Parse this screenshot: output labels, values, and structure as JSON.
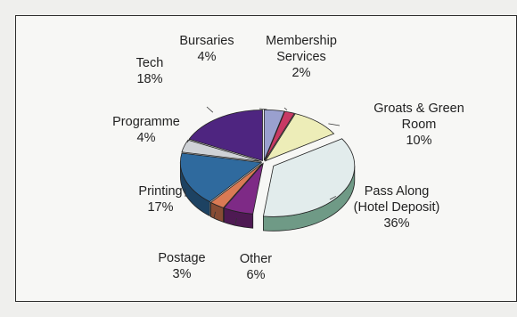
{
  "chart_data": {
    "type": "pie",
    "style": "3d-exploded",
    "title": "",
    "slices": [
      {
        "label": [
          "Bursaries"
        ],
        "value": 4,
        "pct": "4%",
        "color": "#9aa0cf"
      },
      {
        "label": [
          "Membership",
          "Services"
        ],
        "value": 2,
        "pct": "2%",
        "color": "#c83a64"
      },
      {
        "label": [
          "Groats & Green",
          "Room"
        ],
        "value": 10,
        "pct": "10%",
        "color": "#ededb8"
      },
      {
        "label": [
          "Pass Along",
          "(Hotel Deposit)"
        ],
        "value": 36,
        "pct": "36%",
        "color": "#e2ecec"
      },
      {
        "label": [
          "Other"
        ],
        "value": 6,
        "pct": "6%",
        "color": "#7e2a86"
      },
      {
        "label": [
          "Postage"
        ],
        "value": 3,
        "pct": "3%",
        "color": "#d97a54"
      },
      {
        "label": [
          "Printing"
        ],
        "value": 17,
        "pct": "17%",
        "color": "#2f6a9e"
      },
      {
        "label": [
          "Programme"
        ],
        "value": 4,
        "pct": "4%",
        "color": "#cfd2d6"
      },
      {
        "label": [
          "Tech"
        ],
        "value": 18,
        "pct": "18%",
        "color": "#4e2580"
      }
    ]
  }
}
